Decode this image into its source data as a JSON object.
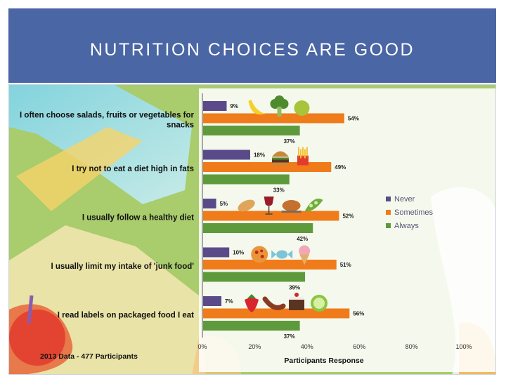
{
  "slide": {
    "title": "NUTRITION CHOICES ARE GOOD"
  },
  "figure": {
    "footnote": "2013 Data - 477 Participants"
  },
  "chart_data": {
    "type": "bar",
    "orientation": "horizontal",
    "categories": [
      "I often choose salads, fruits or vegetables for snacks",
      "I try not to eat a diet high in fats",
      "I usually follow a healthy diet",
      "I usually limit my intake of 'junk food'",
      "I read labels on packaged food I eat"
    ],
    "series": [
      {
        "name": "Never",
        "color": "#5a4a8a",
        "values": [
          9,
          18,
          5,
          10,
          7
        ]
      },
      {
        "name": "Sometimes",
        "color": "#ef7b1a",
        "values": [
          54,
          49,
          52,
          51,
          56
        ]
      },
      {
        "name": "Always",
        "color": "#5e9a3c",
        "values": [
          37,
          33,
          42,
          39,
          37
        ]
      }
    ],
    "data_labels": [
      [
        "9%",
        "18%",
        "5%",
        "10%",
        "7%"
      ],
      [
        "54%",
        "49%",
        "52%",
        "51%",
        "56%"
      ],
      [
        "37%",
        "33%",
        "42%",
        "39%",
        "37%"
      ]
    ],
    "xlim": [
      0,
      100
    ],
    "xticks": [
      "0%",
      "20%",
      "40%",
      "60%",
      "80%",
      "100%"
    ],
    "xlabel": "Participants Response",
    "ylabel": "",
    "legend_position": "right",
    "grid": false,
    "food_icons": [
      [
        "banana-icon",
        "broccoli-icon",
        "pear-icon"
      ],
      [
        "burger-icon",
        "fries-icon"
      ],
      [
        "bread-icon",
        "wine-icon",
        "roast-chicken-icon",
        "peapod-icon"
      ],
      [
        "pizza-icon",
        "candy-icon",
        "ice-cream-icon"
      ],
      [
        "strawberry-icon",
        "sausage-icon",
        "cake-icon",
        "lime-icon"
      ]
    ]
  }
}
